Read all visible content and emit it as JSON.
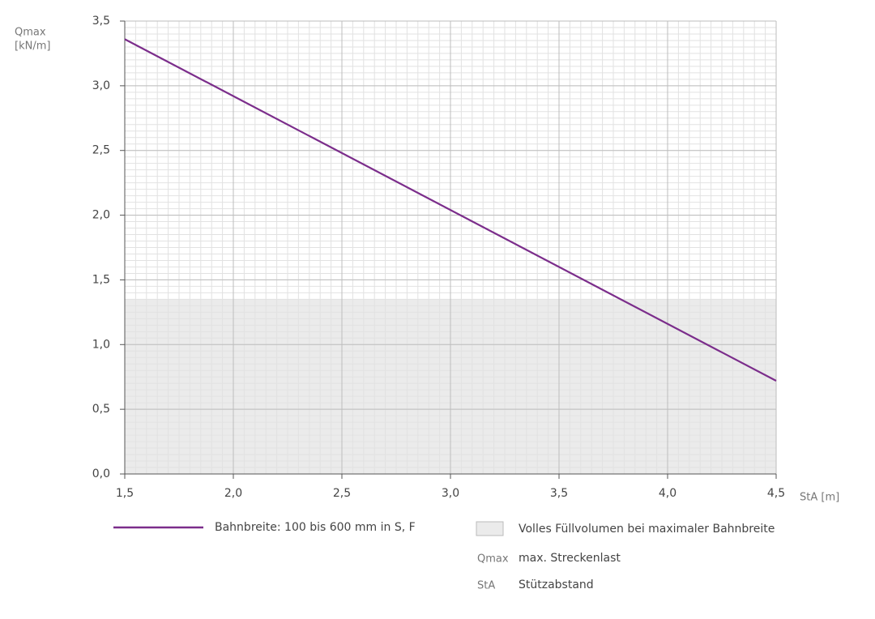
{
  "chart_data": {
    "type": "line",
    "x": [
      1.5,
      4.5
    ],
    "series": [
      {
        "name": "Bahnbreite: 100 bis 600 mm in S, F",
        "color": "#7b2d8b",
        "values": [
          3.36,
          0.72
        ]
      }
    ],
    "shaded_region": {
      "label": "Volles Füllvolumen bei maximaler Bahnbreite",
      "ylim": [
        0,
        1.35
      ],
      "color": "#ebebeb"
    },
    "y_label": [
      "Qmax",
      "[kN/m]"
    ],
    "x_label": "StA [m]",
    "xlim": [
      1.5,
      4.5
    ],
    "ylim": [
      0,
      3.5
    ],
    "xticks": [
      {
        "value": 1.5,
        "label": "1,5"
      },
      {
        "value": 2.0,
        "label": "2,0"
      },
      {
        "value": 2.5,
        "label": "2,5"
      },
      {
        "value": 3.0,
        "label": "3,0"
      },
      {
        "value": 3.5,
        "label": "3,5"
      },
      {
        "value": 4.0,
        "label": "4,0"
      },
      {
        "value": 4.5,
        "label": "4,5"
      }
    ],
    "yticks": [
      {
        "value": 0,
        "label": "0,0"
      },
      {
        "value": 0.5,
        "label": "0,5"
      },
      {
        "value": 1.0,
        "label": "1,0"
      },
      {
        "value": 1.5,
        "label": "1,5"
      },
      {
        "value": 2.0,
        "label": "2,0"
      },
      {
        "value": 2.5,
        "label": "2,5"
      },
      {
        "value": 3.0,
        "label": "3,0"
      },
      {
        "value": 3.5,
        "label": "3,5"
      }
    ],
    "grid": true,
    "minor_grid": {
      "x_step": 0.05,
      "y_step": 0.05
    },
    "notes": [
      {
        "abbr": "Qmax",
        "text": "max. Streckenlast"
      },
      {
        "abbr": "StA",
        "text": "Stützabstand"
      }
    ]
  }
}
